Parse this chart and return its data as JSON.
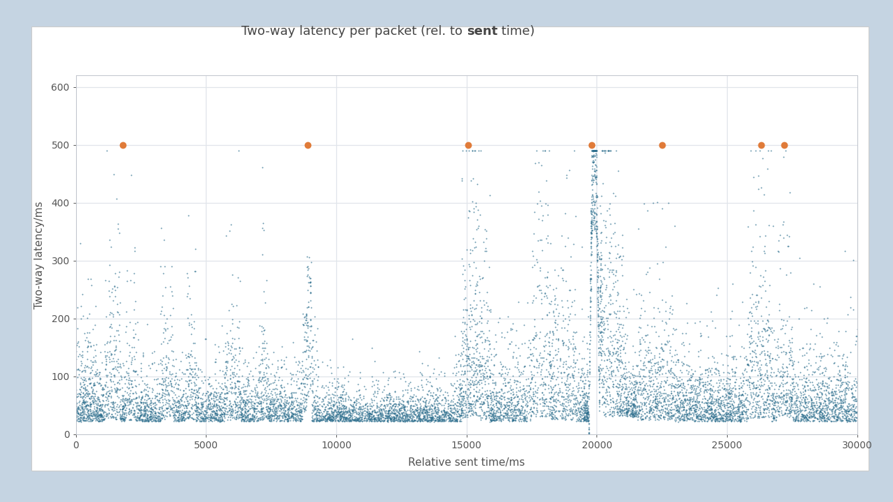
{
  "title_part1": "Two-way latency per packet (rel. to ",
  "title_bold": "sent",
  "title_part2": " time)",
  "xlabel": "Relative sent time/ms",
  "ylabel": "Two-way latency/ms",
  "xlim": [
    0,
    30000
  ],
  "ylim": [
    0,
    620
  ],
  "yticks": [
    0,
    100,
    200,
    300,
    400,
    500,
    600
  ],
  "xticks": [
    0,
    5000,
    10000,
    15000,
    20000,
    25000,
    30000
  ],
  "dot_color": "#2e6f8e",
  "orange_color": "#e07b39",
  "bg_color": "#ffffff",
  "outer_bg": "#c5d4e2",
  "dot_size": 2.0,
  "orange_size": 50,
  "orange_x": [
    1800,
    8900,
    15050,
    19800,
    22500,
    26300,
    27200
  ],
  "orange_y": [
    500,
    500,
    500,
    500,
    500,
    500,
    500
  ],
  "figsize": [
    12.8,
    7.2
  ],
  "dpi": 100,
  "grid_color": "#e0e4ea",
  "tick_color": "#555555",
  "label_color": "#555555",
  "title_color": "#444444",
  "title_fontsize": 13,
  "label_fontsize": 11,
  "tick_fontsize": 10
}
